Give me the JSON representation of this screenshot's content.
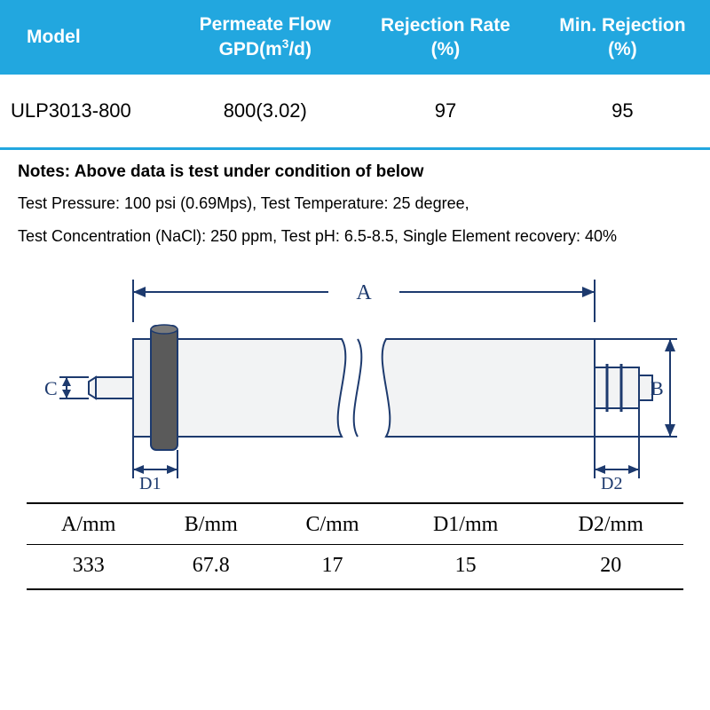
{
  "spec_table": {
    "header_bg": "#22a7df",
    "header_fg": "#ffffff",
    "columns": [
      {
        "line1": "Model",
        "line2": ""
      },
      {
        "line1": "Permeate Flow",
        "line2": "GPD(m³/d)"
      },
      {
        "line1": "Rejection Rate",
        "line2": "(%)"
      },
      {
        "line1": "Min. Rejection",
        "line2": "(%)"
      }
    ],
    "row": {
      "model": "ULP3013-800",
      "permeate_flow": "800(3.02)",
      "rejection_rate": "97",
      "min_rejection": "95"
    },
    "row_border_color": "#22a7df"
  },
  "notes": {
    "title": "Notes: Above data is test under condition of below",
    "line1": "Test Pressure: 100 psi (0.69Mps), Test Temperature: 25 degree,",
    "line2": "Test Concentration (NaCl): 250 ppm, Test pH: 6.5-8.5, Single Element recovery: 40%"
  },
  "diagram": {
    "labels": {
      "A": "A",
      "B": "B",
      "C": "C",
      "D1": "D1",
      "D2": "D2"
    },
    "stroke": "#1d3a6e",
    "body_fill": "#f2f3f4",
    "oring_fill": "#5a5a5a",
    "font_family": "Times New Roman"
  },
  "dim_table": {
    "columns": [
      "A/mm",
      "B/mm",
      "C/mm",
      "D1/mm",
      "D2/mm"
    ],
    "row": [
      "333",
      "67.8",
      "17",
      "15",
      "20"
    ]
  }
}
